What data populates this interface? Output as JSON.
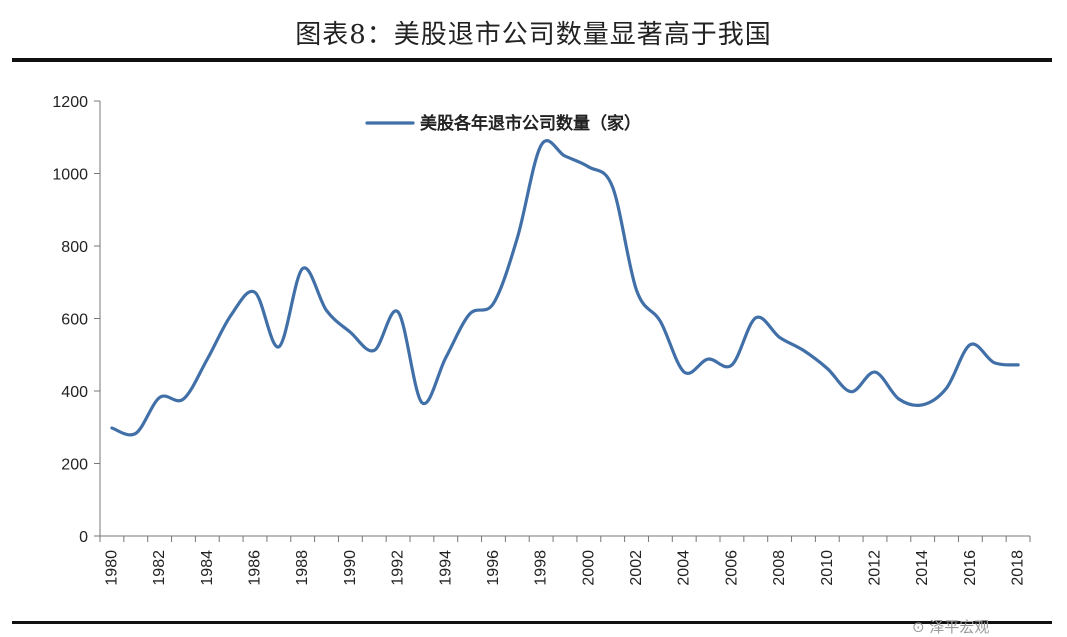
{
  "page": {
    "title": "图表8：美股退市公司数量显著高于我国"
  },
  "watermark": {
    "text": "⊙ 泽平宏观"
  },
  "chart_data": {
    "type": "line",
    "title": "",
    "xlabel": "",
    "ylabel": "",
    "ylim": [
      0,
      1200
    ],
    "yticks": [
      0,
      200,
      400,
      600,
      800,
      1000,
      1200
    ],
    "xticks": [
      1980,
      1982,
      1984,
      1986,
      1988,
      1990,
      1992,
      1994,
      1996,
      1998,
      2000,
      2002,
      2004,
      2006,
      2008,
      2010,
      2012,
      2014,
      2016,
      2018
    ],
    "grid": false,
    "legend_position": "top-center",
    "line_color": "#4170a8",
    "x": [
      1980,
      1981,
      1982,
      1983,
      1984,
      1985,
      1986,
      1987,
      1988,
      1989,
      1990,
      1991,
      1992,
      1993,
      1994,
      1995,
      1996,
      1997,
      1998,
      1999,
      2000,
      2001,
      2002,
      2003,
      2004,
      2005,
      2006,
      2007,
      2008,
      2009,
      2010,
      2011,
      2012,
      2013,
      2014,
      2015,
      2016,
      2017,
      2018
    ],
    "series": [
      {
        "name": "美股各年退市公司数量（家）",
        "values": [
          298,
          283,
          382,
          378,
          488,
          610,
          672,
          522,
          738,
          622,
          562,
          512,
          618,
          368,
          492,
          612,
          642,
          822,
          1078,
          1048,
          1018,
          962,
          678,
          592,
          452,
          488,
          472,
          602,
          548,
          512,
          462,
          398,
          452,
          378,
          362,
          408,
          528,
          478,
          472
        ]
      }
    ]
  }
}
